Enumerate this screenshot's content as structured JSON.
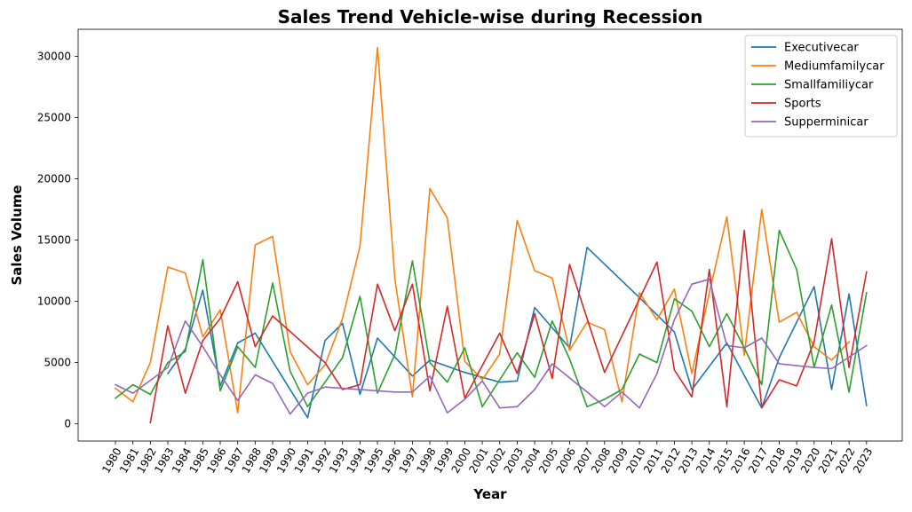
{
  "chart_data": {
    "type": "line",
    "title": "Sales Trend Vehicle-wise during Recession",
    "xlabel": "Year",
    "ylabel": "Sales Volume",
    "ylim": [
      -1400,
      32200
    ],
    "yticks": [
      0,
      5000,
      10000,
      15000,
      20000,
      25000,
      30000
    ],
    "grid": false,
    "legend_position": "top-right",
    "categories": [
      "1980",
      "1981",
      "1982",
      "1983",
      "1984",
      "1985",
      "1986",
      "1987",
      "1988",
      "1989",
      "1990",
      "1991",
      "1992",
      "1993",
      "1994",
      "1995",
      "1996",
      "1997",
      "1998",
      "1999",
      "2000",
      "2001",
      "2002",
      "2003",
      "2004",
      "2005",
      "2006",
      "2007",
      "2008",
      "2009",
      "2010",
      "2011",
      "2012",
      "2013",
      "2014",
      "2015",
      "2016",
      "2017",
      "2018",
      "2019",
      "2020",
      "2021",
      "2022",
      "2023"
    ],
    "series": [
      {
        "name": "Executivecar",
        "color": "#1f77b4",
        "points": [
          [
            1983,
            4100
          ],
          [
            1984,
            6100
          ],
          [
            1985,
            10900
          ],
          [
            1986,
            3100
          ],
          [
            1987,
            6600
          ],
          [
            1988,
            7400
          ],
          [
            1991,
            500
          ],
          [
            1992,
            6800
          ],
          [
            1993,
            8200
          ],
          [
            1994,
            2400
          ],
          [
            1995,
            7000
          ],
          [
            1997,
            3900
          ],
          [
            1998,
            5200
          ],
          [
            2000,
            4200
          ],
          [
            2002,
            3400
          ],
          [
            2003,
            3500
          ],
          [
            2004,
            9500
          ],
          [
            2006,
            6200
          ],
          [
            2007,
            14400
          ],
          [
            2010,
            10300
          ],
          [
            2012,
            7500
          ],
          [
            2013,
            2800
          ],
          [
            2015,
            6600
          ],
          [
            2017,
            1300
          ],
          [
            2018,
            5400
          ],
          [
            2020,
            11200
          ],
          [
            2021,
            2800
          ],
          [
            2022,
            10600
          ],
          [
            2023,
            1500
          ]
        ]
      },
      {
        "name": "Mediumfamilycar",
        "color": "#ff7f0e",
        "points": [
          [
            1980,
            2900
          ],
          [
            1981,
            1800
          ],
          [
            1982,
            5000
          ],
          [
            1983,
            12800
          ],
          [
            1984,
            12300
          ],
          [
            1985,
            7100
          ],
          [
            1986,
            9300
          ],
          [
            1987,
            900
          ],
          [
            1988,
            14600
          ],
          [
            1989,
            15300
          ],
          [
            1990,
            5900
          ],
          [
            1991,
            3200
          ],
          [
            1992,
            4800
          ],
          [
            1993,
            8600
          ],
          [
            1994,
            14500
          ],
          [
            1995,
            30700
          ],
          [
            1996,
            11800
          ],
          [
            1997,
            2200
          ],
          [
            1998,
            19200
          ],
          [
            1999,
            16800
          ],
          [
            2000,
            5100
          ],
          [
            2001,
            3600
          ],
          [
            2002,
            5700
          ],
          [
            2003,
            16600
          ],
          [
            2004,
            12500
          ],
          [
            2005,
            11900
          ],
          [
            2006,
            6000
          ],
          [
            2007,
            8300
          ],
          [
            2008,
            7700
          ],
          [
            2009,
            1800
          ],
          [
            2010,
            10700
          ],
          [
            2011,
            8500
          ],
          [
            2012,
            11000
          ],
          [
            2013,
            4100
          ],
          [
            2014,
            10700
          ],
          [
            2015,
            16900
          ],
          [
            2016,
            5600
          ],
          [
            2017,
            17500
          ],
          [
            2018,
            8300
          ],
          [
            2019,
            9100
          ],
          [
            2020,
            6300
          ],
          [
            2021,
            5200
          ],
          [
            2022,
            6700
          ]
        ]
      },
      {
        "name": "Smallfamiliycar",
        "color": "#2ca02c",
        "points": [
          [
            1980,
            2100
          ],
          [
            1981,
            3200
          ],
          [
            1982,
            2400
          ],
          [
            1983,
            5000
          ],
          [
            1984,
            5900
          ],
          [
            1985,
            13400
          ],
          [
            1986,
            2700
          ],
          [
            1987,
            6300
          ],
          [
            1988,
            4600
          ],
          [
            1989,
            11500
          ],
          [
            1990,
            4300
          ],
          [
            1991,
            1400
          ],
          [
            1992,
            3400
          ],
          [
            1993,
            5400
          ],
          [
            1994,
            10400
          ],
          [
            1995,
            2500
          ],
          [
            1996,
            5700
          ],
          [
            1997,
            13300
          ],
          [
            1998,
            5000
          ],
          [
            1999,
            3400
          ],
          [
            2000,
            6200
          ],
          [
            2001,
            1400
          ],
          [
            2002,
            3600
          ],
          [
            2003,
            5800
          ],
          [
            2004,
            3800
          ],
          [
            2005,
            8400
          ],
          [
            2006,
            5300
          ],
          [
            2007,
            1400
          ],
          [
            2008,
            2000
          ],
          [
            2009,
            2800
          ],
          [
            2010,
            5700
          ],
          [
            2011,
            5000
          ],
          [
            2012,
            10200
          ],
          [
            2013,
            9200
          ],
          [
            2014,
            6300
          ],
          [
            2015,
            9000
          ],
          [
            2016,
            6200
          ],
          [
            2017,
            3200
          ],
          [
            2018,
            15800
          ],
          [
            2019,
            12600
          ],
          [
            2020,
            4600
          ],
          [
            2021,
            9700
          ],
          [
            2022,
            2600
          ],
          [
            2023,
            10700
          ]
        ]
      },
      {
        "name": "Sports",
        "color": "#d62728",
        "points": [
          [
            1982,
            100
          ],
          [
            1983,
            8000
          ],
          [
            1984,
            2500
          ],
          [
            1985,
            6800
          ],
          [
            1986,
            8600
          ],
          [
            1987,
            11600
          ],
          [
            1988,
            6300
          ],
          [
            1989,
            8800
          ],
          [
            1992,
            5000
          ],
          [
            1993,
            2800
          ],
          [
            1994,
            3200
          ],
          [
            1995,
            11400
          ],
          [
            1996,
            7600
          ],
          [
            1997,
            11400
          ],
          [
            1998,
            2700
          ],
          [
            1999,
            9600
          ],
          [
            2000,
            2100
          ],
          [
            2002,
            7400
          ],
          [
            2003,
            4100
          ],
          [
            2004,
            9000
          ],
          [
            2005,
            3700
          ],
          [
            2006,
            13000
          ],
          [
            2008,
            4200
          ],
          [
            2011,
            13200
          ],
          [
            2012,
            4400
          ],
          [
            2013,
            2200
          ],
          [
            2014,
            12600
          ],
          [
            2015,
            1400
          ],
          [
            2016,
            15800
          ],
          [
            2017,
            1300
          ],
          [
            2018,
            3600
          ],
          [
            2019,
            3100
          ],
          [
            2020,
            6700
          ],
          [
            2021,
            15100
          ],
          [
            2022,
            4600
          ],
          [
            2023,
            12400
          ]
        ]
      },
      {
        "name": "Supperminicar",
        "color": "#9467bd",
        "points": [
          [
            1980,
            3200
          ],
          [
            1981,
            2500
          ],
          [
            1983,
            4600
          ],
          [
            1984,
            8400
          ],
          [
            1985,
            6300
          ],
          [
            1986,
            4000
          ],
          [
            1987,
            1900
          ],
          [
            1988,
            4000
          ],
          [
            1989,
            3300
          ],
          [
            1990,
            800
          ],
          [
            1991,
            2500
          ],
          [
            1992,
            3000
          ],
          [
            1993,
            2900
          ],
          [
            1995,
            2700
          ],
          [
            1996,
            2600
          ],
          [
            1997,
            2600
          ],
          [
            1998,
            3900
          ],
          [
            1999,
            900
          ],
          [
            2000,
            2000
          ],
          [
            2001,
            3500
          ],
          [
            2002,
            1300
          ],
          [
            2003,
            1400
          ],
          [
            2004,
            2800
          ],
          [
            2005,
            4900
          ],
          [
            2007,
            2600
          ],
          [
            2008,
            1400
          ],
          [
            2009,
            2600
          ],
          [
            2010,
            1300
          ],
          [
            2011,
            4100
          ],
          [
            2012,
            8500
          ],
          [
            2013,
            11400
          ],
          [
            2014,
            11800
          ],
          [
            2015,
            6400
          ],
          [
            2016,
            6200
          ],
          [
            2017,
            7000
          ],
          [
            2018,
            4900
          ],
          [
            2020,
            4600
          ],
          [
            2021,
            4500
          ],
          [
            2023,
            6400
          ]
        ]
      }
    ]
  }
}
